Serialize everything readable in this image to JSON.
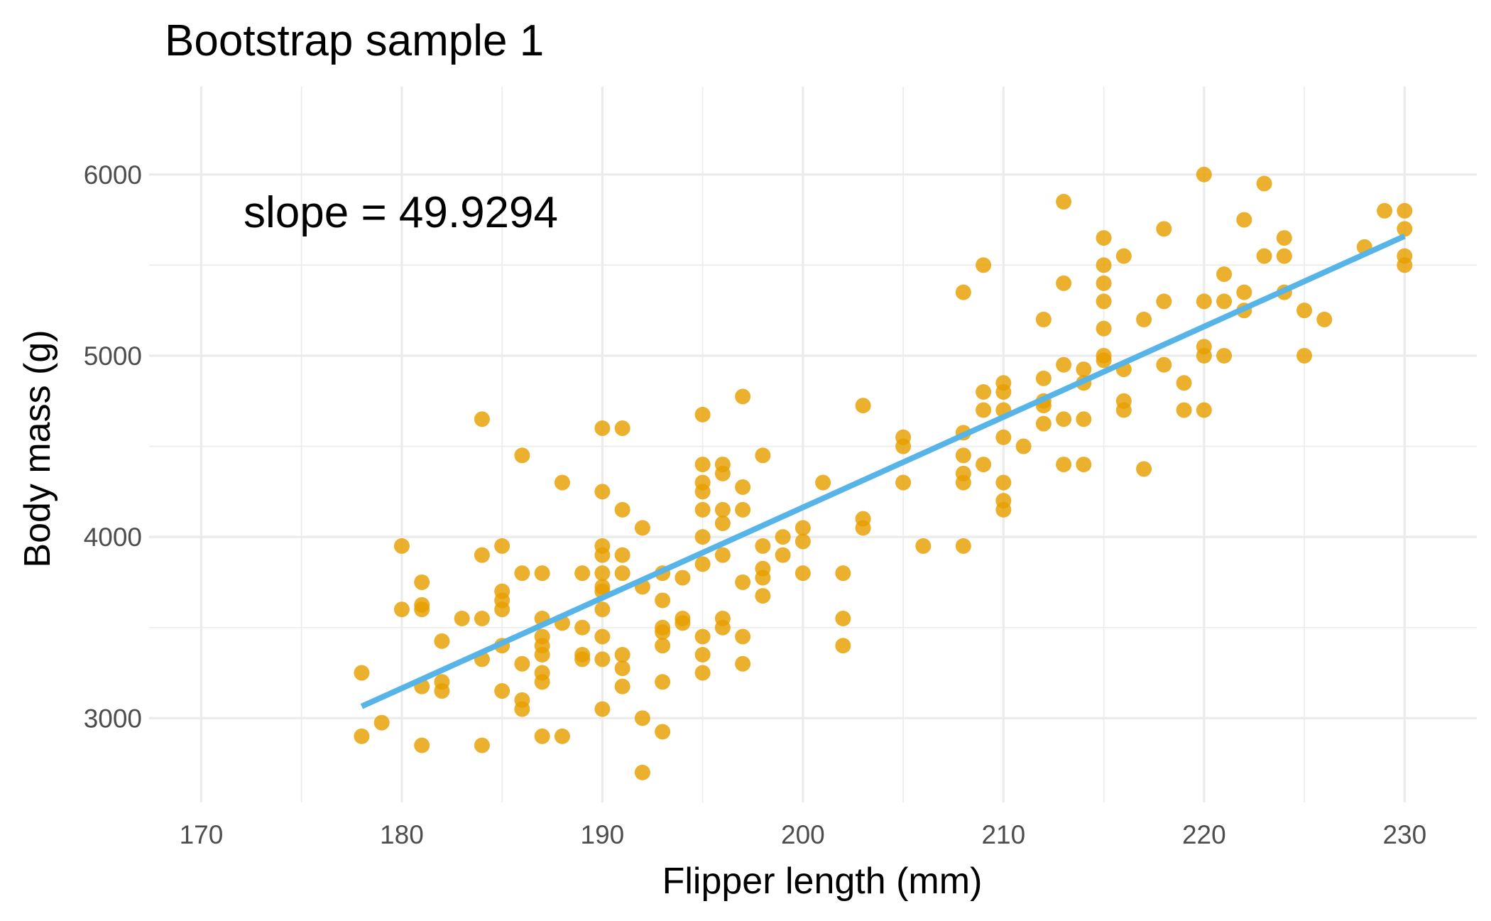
{
  "chart_data": {
    "type": "scatter",
    "title": "Bootstrap sample 1",
    "xlabel": "Flipper length (mm)",
    "ylabel": "Body mass (g)",
    "xlim": [
      167.4,
      233.6
    ],
    "ylim": [
      2535,
      6485
    ],
    "x_ticks": [
      170,
      180,
      190,
      200,
      210,
      220,
      230
    ],
    "y_ticks": [
      3000,
      4000,
      5000,
      6000
    ],
    "grid": true,
    "legend": "none",
    "colors": {
      "points": "#E69F00",
      "fit_line": "#56B4E9"
    },
    "annotation": "slope = 49.9294",
    "fit_line": {
      "x": [
        178,
        230
      ],
      "y": [
        3065,
        5660
      ]
    },
    "points": [
      [
        178,
        3250
      ],
      [
        178,
        2900
      ],
      [
        179,
        2975
      ],
      [
        180,
        3950
      ],
      [
        180,
        3600
      ],
      [
        181,
        3750
      ],
      [
        181,
        3625
      ],
      [
        181,
        3600
      ],
      [
        181,
        3175
      ],
      [
        181,
        2850
      ],
      [
        182,
        3425
      ],
      [
        182,
        3200
      ],
      [
        182,
        3150
      ],
      [
        183,
        3550
      ],
      [
        184,
        4650
      ],
      [
        184,
        3900
      ],
      [
        184,
        3550
      ],
      [
        184,
        3325
      ],
      [
        184,
        2850
      ],
      [
        185,
        3950
      ],
      [
        185,
        3700
      ],
      [
        185,
        3650
      ],
      [
        185,
        3600
      ],
      [
        185,
        3400
      ],
      [
        185,
        3150
      ],
      [
        186,
        4450
      ],
      [
        186,
        3800
      ],
      [
        186,
        3300
      ],
      [
        186,
        3100
      ],
      [
        186,
        3050
      ],
      [
        187,
        3800
      ],
      [
        187,
        3550
      ],
      [
        187,
        3450
      ],
      [
        187,
        3400
      ],
      [
        187,
        3350
      ],
      [
        187,
        3250
      ],
      [
        187,
        3200
      ],
      [
        187,
        2900
      ],
      [
        188,
        4300
      ],
      [
        188,
        3525
      ],
      [
        188,
        2900
      ],
      [
        189,
        3800
      ],
      [
        189,
        3500
      ],
      [
        189,
        3350
      ],
      [
        189,
        3325
      ],
      [
        190,
        4600
      ],
      [
        190,
        4250
      ],
      [
        190,
        3950
      ],
      [
        190,
        3900
      ],
      [
        190,
        3800
      ],
      [
        190,
        3725
      ],
      [
        190,
        3700
      ],
      [
        190,
        3600
      ],
      [
        190,
        3450
      ],
      [
        190,
        3325
      ],
      [
        190,
        3050
      ],
      [
        191,
        4600
      ],
      [
        191,
        4150
      ],
      [
        191,
        3900
      ],
      [
        191,
        3800
      ],
      [
        191,
        3350
      ],
      [
        191,
        3275
      ],
      [
        191,
        3175
      ],
      [
        192,
        4050
      ],
      [
        192,
        3725
      ],
      [
        192,
        3000
      ],
      [
        192,
        2700
      ],
      [
        193,
        3800
      ],
      [
        193,
        3650
      ],
      [
        193,
        3500
      ],
      [
        193,
        3475
      ],
      [
        193,
        3400
      ],
      [
        193,
        3200
      ],
      [
        193,
        2925
      ],
      [
        194,
        3775
      ],
      [
        194,
        3550
      ],
      [
        194,
        3525
      ],
      [
        195,
        4675
      ],
      [
        195,
        4400
      ],
      [
        195,
        4300
      ],
      [
        195,
        4250
      ],
      [
        195,
        4150
      ],
      [
        195,
        4000
      ],
      [
        195,
        3850
      ],
      [
        195,
        3450
      ],
      [
        195,
        3350
      ],
      [
        195,
        3250
      ],
      [
        196,
        4400
      ],
      [
        196,
        4350
      ],
      [
        196,
        4150
      ],
      [
        196,
        4075
      ],
      [
        196,
        3900
      ],
      [
        196,
        3550
      ],
      [
        196,
        3500
      ],
      [
        197,
        4775
      ],
      [
        197,
        4275
      ],
      [
        197,
        4150
      ],
      [
        197,
        3750
      ],
      [
        197,
        3450
      ],
      [
        197,
        3300
      ],
      [
        198,
        4450
      ],
      [
        198,
        3950
      ],
      [
        198,
        3825
      ],
      [
        198,
        3775
      ],
      [
        198,
        3675
      ],
      [
        199,
        4000
      ],
      [
        199,
        3900
      ],
      [
        200,
        4050
      ],
      [
        200,
        3975
      ],
      [
        200,
        3800
      ],
      [
        201,
        4300
      ],
      [
        202,
        3800
      ],
      [
        202,
        3550
      ],
      [
        202,
        3400
      ],
      [
        203,
        4725
      ],
      [
        203,
        4100
      ],
      [
        203,
        4050
      ],
      [
        205,
        4550
      ],
      [
        205,
        4500
      ],
      [
        205,
        4300
      ],
      [
        206,
        3950
      ],
      [
        208,
        5350
      ],
      [
        208,
        4575
      ],
      [
        208,
        4450
      ],
      [
        208,
        4350
      ],
      [
        208,
        4300
      ],
      [
        208,
        3950
      ],
      [
        209,
        5500
      ],
      [
        209,
        4800
      ],
      [
        209,
        4700
      ],
      [
        209,
        4400
      ],
      [
        210,
        4850
      ],
      [
        210,
        4800
      ],
      [
        210,
        4700
      ],
      [
        210,
        4550
      ],
      [
        210,
        4300
      ],
      [
        210,
        4200
      ],
      [
        210,
        4150
      ],
      [
        211,
        4500
      ],
      [
        212,
        5200
      ],
      [
        212,
        4875
      ],
      [
        212,
        4750
      ],
      [
        212,
        4725
      ],
      [
        212,
        4625
      ],
      [
        213,
        5850
      ],
      [
        213,
        5400
      ],
      [
        213,
        4950
      ],
      [
        213,
        4650
      ],
      [
        213,
        4400
      ],
      [
        214,
        4925
      ],
      [
        214,
        4850
      ],
      [
        214,
        4650
      ],
      [
        214,
        4400
      ],
      [
        215,
        5650
      ],
      [
        215,
        5500
      ],
      [
        215,
        5400
      ],
      [
        215,
        5300
      ],
      [
        215,
        5150
      ],
      [
        215,
        5000
      ],
      [
        215,
        4975
      ],
      [
        216,
        5550
      ],
      [
        216,
        4925
      ],
      [
        216,
        4750
      ],
      [
        216,
        4700
      ],
      [
        217,
        5200
      ],
      [
        217,
        4375
      ],
      [
        218,
        5700
      ],
      [
        218,
        5300
      ],
      [
        218,
        4950
      ],
      [
        219,
        4850
      ],
      [
        219,
        4700
      ],
      [
        220,
        6000
      ],
      [
        220,
        5300
      ],
      [
        220,
        5050
      ],
      [
        220,
        5000
      ],
      [
        220,
        4700
      ],
      [
        221,
        5450
      ],
      [
        221,
        5300
      ],
      [
        221,
        5000
      ],
      [
        222,
        5750
      ],
      [
        222,
        5350
      ],
      [
        222,
        5250
      ],
      [
        223,
        5950
      ],
      [
        223,
        5550
      ],
      [
        224,
        5650
      ],
      [
        224,
        5550
      ],
      [
        224,
        5350
      ],
      [
        225,
        5250
      ],
      [
        225,
        5000
      ],
      [
        226,
        5200
      ],
      [
        228,
        5600
      ],
      [
        229,
        5800
      ],
      [
        230,
        5800
      ],
      [
        230,
        5700
      ],
      [
        230,
        5550
      ],
      [
        230,
        5500
      ]
    ]
  }
}
